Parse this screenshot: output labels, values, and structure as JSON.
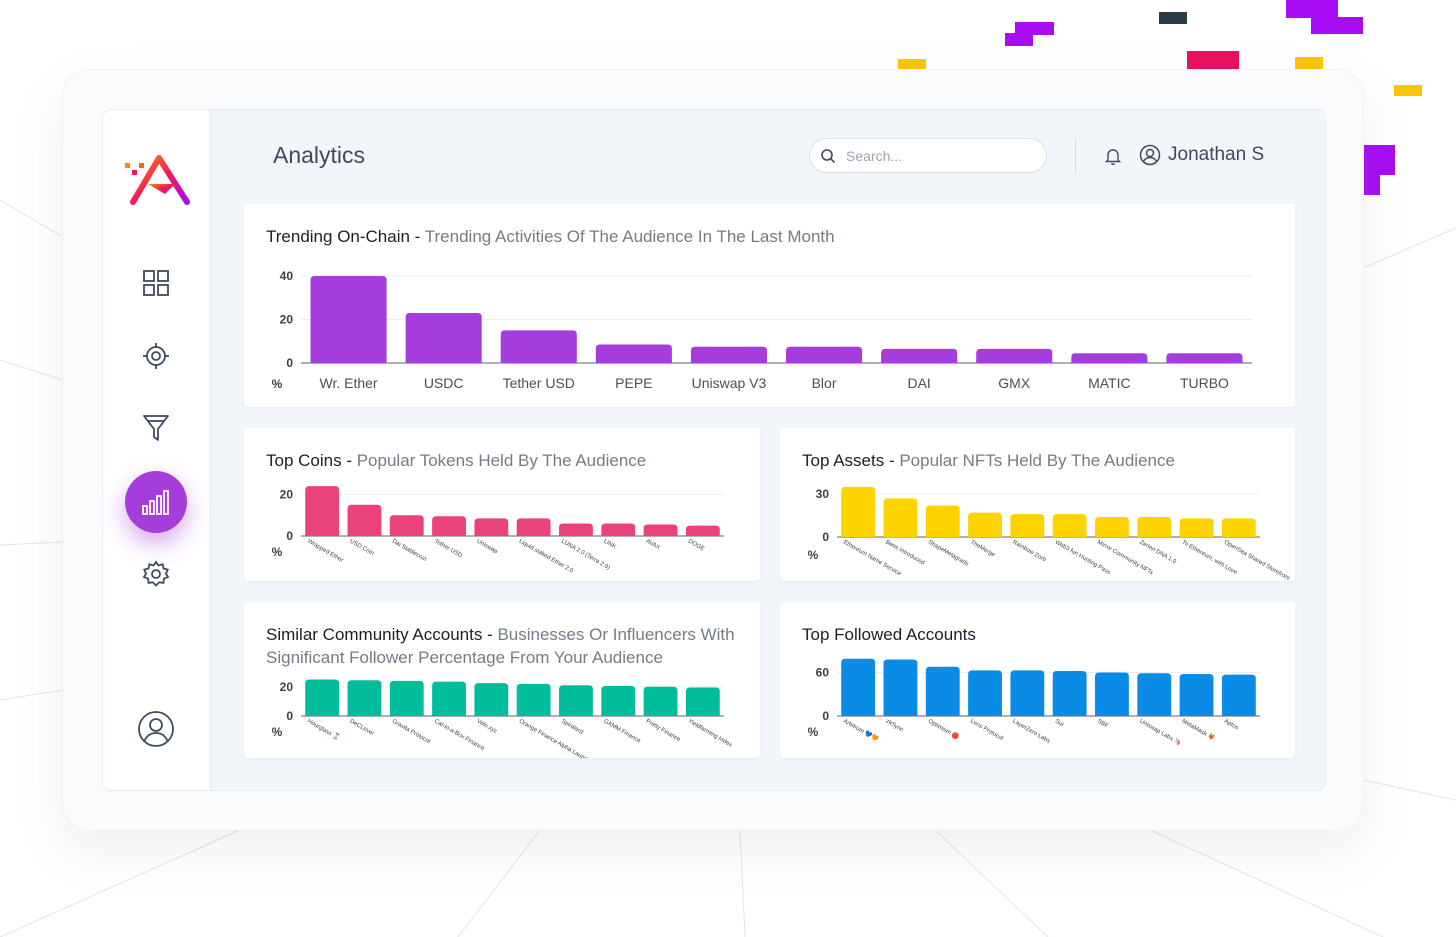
{
  "app": {
    "page_title": "Analytics",
    "search": {
      "placeholder": "Search..."
    },
    "user": {
      "name": "Jonathan S"
    },
    "sidebar": {
      "items": [
        {
          "name": "dashboard",
          "icon": "grid-icon"
        },
        {
          "name": "targeting",
          "icon": "crosshair-icon"
        },
        {
          "name": "funnel",
          "icon": "funnel-icon"
        },
        {
          "name": "analytics",
          "icon": "bar-chart-icon",
          "active": true
        },
        {
          "name": "settings",
          "icon": "gear-icon"
        }
      ],
      "profile_icon": "user-circle-icon"
    },
    "colors": {
      "brand": "#a53ddc",
      "purple": "#a53ddc",
      "pink": "#e94379",
      "yellow": "#fdd301",
      "teal": "#02bd9c",
      "blue": "#0a8be6"
    }
  },
  "chart_data": [
    {
      "id": "trending",
      "type": "bar",
      "title": "Trending On-Chain",
      "subtitle": "Trending Activities Of The Audience In The Last Month",
      "unit": "%",
      "yticks": [
        0,
        20,
        40
      ],
      "ylim": [
        0,
        40
      ],
      "categories": [
        "Wr. Ether",
        "USDC",
        "Tether USD",
        "PEPE",
        "Uniswap V3",
        "Blor",
        "DAI",
        "GMX",
        "MATIC",
        "TURBO"
      ],
      "values": [
        40,
        23,
        15,
        8.5,
        7.5,
        7.5,
        6.5,
        6.5,
        4.5,
        4.5
      ],
      "color": "#a53ddc"
    },
    {
      "id": "top_coins",
      "type": "bar",
      "title": "Top Coins",
      "subtitle": "Popular Tokens Held By The Audience",
      "unit": "%",
      "yticks": [
        0,
        20
      ],
      "ylim": [
        0,
        25
      ],
      "categories": [
        "Wrapped Ether",
        "USD Coin",
        "Dai Stablecoin",
        "Tether USD",
        "Uniswap",
        "Liquid staked Ether 2.0",
        "LUNA 2.0 (Terra 2.0)",
        "LINK",
        "AVAX",
        "DOGE"
      ],
      "values": [
        24,
        15,
        10,
        9.5,
        8.5,
        8.5,
        6,
        6,
        5.5,
        5
      ],
      "color": "#e94379"
    },
    {
      "id": "top_assets",
      "type": "bar",
      "title": "Top Assets",
      "subtitle": "Popular NFTs Held By The Audience",
      "unit": "%",
      "yticks": [
        0,
        30
      ],
      "ylim": [
        0,
        37
      ],
      "categories": [
        "Ethereum Name Service",
        "Bees Introduced",
        "ShapeMetagrads",
        "TheMerge",
        "Rainbow Zorb",
        "Web3 fun Hunting Pass",
        "Mirror Community NFTs",
        "Zerion DNA 1.0",
        "To Ethereum, with Love",
        "OpenSea Shared Storefront"
      ],
      "values": [
        35,
        27,
        22,
        17,
        16,
        16,
        14,
        14,
        13,
        13
      ],
      "color": "#fdd301"
    },
    {
      "id": "similar_community",
      "type": "bar",
      "title": "Similar Community Accounts",
      "subtitle": "Businesses Or Influencers With Significant Follower Percentage From Your Audience",
      "unit": "%",
      "yticks": [
        0,
        20
      ],
      "ylim": [
        0,
        26
      ],
      "categories": [
        "Hourglass ⌛",
        "DeCLever",
        "Gravita Protocol",
        "Cat-in-a-Box Finance",
        "Velo.xyz",
        "Orange Finance Alpha Launch 🍊",
        "Spiralard",
        "GAMM Finance",
        "Pretty Finance",
        "Yieldfarming Index"
      ],
      "values": [
        25,
        24.5,
        24,
        23.5,
        22.5,
        22,
        21,
        20.5,
        20,
        19.5
      ],
      "color": "#02bd9c"
    },
    {
      "id": "top_followed",
      "type": "bar",
      "title": "Top Followed Accounts",
      "subtitle": "",
      "unit": "%",
      "yticks": [
        0,
        60
      ],
      "ylim": [
        0,
        80
      ],
      "categories": [
        "Arbitrum 💙🧡",
        "zkSync",
        "Optimism 🔴",
        "Lens Protocol",
        "LayerZero Labs",
        "Sui",
        "SBF",
        "Uniswap Labs 🦄",
        "MetaMask 🦊",
        "Aptos"
      ],
      "values": [
        79,
        78,
        68,
        63,
        63,
        62,
        60,
        59,
        58,
        57
      ],
      "color": "#0a8be6"
    }
  ]
}
